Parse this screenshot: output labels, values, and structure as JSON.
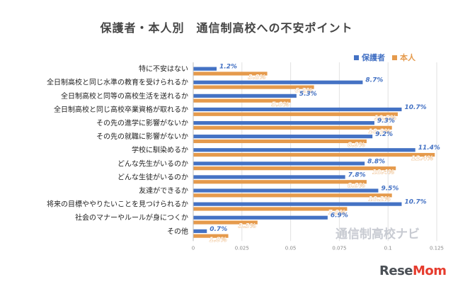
{
  "chart_data": {
    "type": "bar",
    "orientation": "horizontal",
    "title": "保護者・本人別　通信制高校への不安ポイント",
    "categories": [
      "特に不安はない",
      "全日制高校と同じ水準の教育を受けられるか",
      "全日制高校と同等の高校生活を送れるか",
      "全日制高校と同じ高校卒業資格が取れるか",
      "その先の進学に影響がないか",
      "その先の就職に影響がないか",
      "学校に馴染めるか",
      "どんな先生がいるのか",
      "どんな生徒がいるのか",
      "友達ができるか",
      "将来の目標ややりたいことを見つけられるか",
      "社会のマナーやルールが身につくか",
      "その他"
    ],
    "series": [
      {
        "name": "保護者",
        "color": "#4472c4",
        "values": [
          0.012,
          0.087,
          0.053,
          0.107,
          0.093,
          0.092,
          0.114,
          0.088,
          0.078,
          0.095,
          0.107,
          0.069,
          0.007
        ],
        "labels": [
          "1.2%",
          "8.7%",
          "5.3%",
          "10.7%",
          "9.3%",
          "9.2%",
          "11.4%",
          "8.8%",
          "7.8%",
          "9.5%",
          "10.7%",
          "6.9%",
          "0.7%"
        ]
      },
      {
        "name": "本人",
        "color": "#e59a4c",
        "values": [
          0.038,
          0.062,
          0.05,
          0.105,
          0.102,
          0.089,
          0.124,
          0.104,
          0.089,
          0.102,
          0.079,
          0.033,
          0.018
        ],
        "labels": [
          "3.8%",
          "6.2%",
          "5.0%",
          "10.5%",
          "10.2%",
          "8.9%",
          "12.4%",
          "10.4%",
          "8.9%",
          "10.2%",
          "7.9%",
          "3.3%",
          "1.8%"
        ]
      }
    ],
    "xlim": [
      0,
      0.125
    ],
    "xticks": [
      "0",
      "0.025",
      "0.05",
      "0.075",
      "0.1",
      "0.125"
    ],
    "xtick_values": [
      0,
      0.025,
      0.05,
      0.075,
      0.1,
      0.125
    ],
    "legend_position": "top-right",
    "grid": "vertical"
  },
  "watermark": {
    "text": "通信制高校ナビ"
  },
  "brand": {
    "name": "ReseMom",
    "part1": "Rese",
    "part2": "Mom"
  }
}
